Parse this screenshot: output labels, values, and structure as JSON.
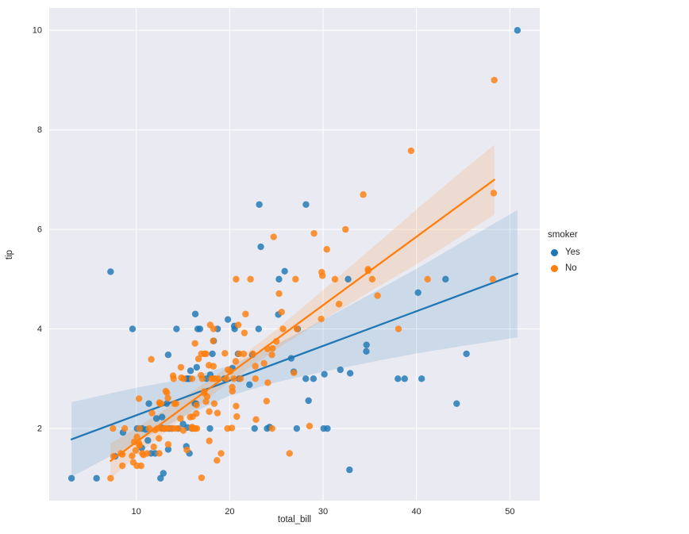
{
  "figure": {
    "background": "#ffffff",
    "plot_bg": "#eaeaf2",
    "grid_color": "#ffffff",
    "tick_color": "#262626"
  },
  "chart_data": {
    "type": "scatter",
    "title": "",
    "xlabel": "total_bill",
    "ylabel": "tip",
    "xlim": [
      0.68,
      53.2
    ],
    "ylim": [
      0.55,
      10.45
    ],
    "xticks": [
      10,
      20,
      30,
      40,
      50
    ],
    "yticks": [
      2,
      4,
      6,
      8,
      10
    ],
    "grid": true,
    "legend": {
      "title": "smoker",
      "position": "right-outside"
    },
    "series": [
      {
        "name": "Yes",
        "color": "#1f77b4",
        "regression": {
          "x_start": 3.07,
          "x_end": 50.81,
          "slope": 0.0697,
          "intercept": 1.568
        },
        "ci_band": [
          [
            3.07,
            1.03,
            2.53
          ],
          [
            10,
            1.72,
            2.82
          ],
          [
            15,
            2.23,
            2.99
          ],
          [
            20,
            2.66,
            3.26
          ],
          [
            25,
            2.93,
            3.69
          ],
          [
            30,
            3.14,
            4.18
          ],
          [
            35,
            3.33,
            4.69
          ],
          [
            40,
            3.51,
            5.21
          ],
          [
            45,
            3.66,
            5.76
          ],
          [
            50.81,
            3.83,
            6.39
          ]
        ],
        "points": [
          [
            38.01,
            3.0
          ],
          [
            11.24,
            1.76
          ],
          [
            20.29,
            3.21
          ],
          [
            13.81,
            2.0
          ],
          [
            11.02,
            1.98
          ],
          [
            18.29,
            3.76
          ],
          [
            3.07,
            1.0
          ],
          [
            15.01,
            2.09
          ],
          [
            26.86,
            3.14
          ],
          [
            25.28,
            5.0
          ],
          [
            17.92,
            3.08
          ],
          [
            19.44,
            3.0
          ],
          [
            32.68,
            5.0
          ],
          [
            28.97,
            3.0
          ],
          [
            5.75,
            1.0
          ],
          [
            16.32,
            4.3
          ],
          [
            40.17,
            4.73
          ],
          [
            27.28,
            4.0
          ],
          [
            12.03,
            1.5
          ],
          [
            21.01,
            3.0
          ],
          [
            11.35,
            2.5
          ],
          [
            15.38,
            3.0
          ],
          [
            44.3,
            2.5
          ],
          [
            22.42,
            3.48
          ],
          [
            15.36,
            1.64
          ],
          [
            20.49,
            4.06
          ],
          [
            25.21,
            4.29
          ],
          [
            14.31,
            4.0
          ],
          [
            17.51,
            3.0
          ],
          [
            10.59,
            1.61
          ],
          [
            10.63,
            2.0
          ],
          [
            50.81,
            10.0
          ],
          [
            15.81,
            3.16
          ],
          [
            7.25,
            5.15
          ],
          [
            31.85,
            3.18
          ],
          [
            16.82,
            4.0
          ],
          [
            32.9,
            3.11
          ],
          [
            17.89,
            2.0
          ],
          [
            14.48,
            2.0
          ],
          [
            9.6,
            4.0
          ],
          [
            34.63,
            3.55
          ],
          [
            34.65,
            3.68
          ],
          [
            23.33,
            5.65
          ],
          [
            45.35,
            3.5
          ],
          [
            23.17,
            6.5
          ],
          [
            40.55,
            3.0
          ],
          [
            20.9,
            3.5
          ],
          [
            30.46,
            2.0
          ],
          [
            18.15,
            3.5
          ],
          [
            23.1,
            4.0
          ],
          [
            15.69,
            1.5
          ],
          [
            19.81,
            4.19
          ],
          [
            28.44,
            2.56
          ],
          [
            15.48,
            2.02
          ],
          [
            16.58,
            4.0
          ],
          [
            10.34,
            2.0
          ],
          [
            43.11,
            5.0
          ],
          [
            13.0,
            2.0
          ],
          [
            13.51,
            2.0
          ],
          [
            18.71,
            4.0
          ],
          [
            12.74,
            2.01
          ],
          [
            13.0,
            2.0
          ],
          [
            16.4,
            2.5
          ],
          [
            20.53,
            4.0
          ],
          [
            16.47,
            3.23
          ],
          [
            26.59,
            3.41
          ],
          [
            38.73,
            3.0
          ],
          [
            24.27,
            2.03
          ],
          [
            12.76,
            2.23
          ],
          [
            30.06,
            2.0
          ],
          [
            25.89,
            5.16
          ],
          [
            13.27,
            2.5
          ],
          [
            28.17,
            6.5
          ],
          [
            12.9,
            1.1
          ],
          [
            28.15,
            3.0
          ],
          [
            11.59,
            1.5
          ],
          [
            7.74,
            1.44
          ],
          [
            30.14,
            3.09
          ],
          [
            12.16,
            2.2
          ],
          [
            13.42,
            3.48
          ],
          [
            8.58,
            1.92
          ],
          [
            13.42,
            1.58
          ],
          [
            16.27,
            2.5
          ],
          [
            10.09,
            2.0
          ],
          [
            22.12,
            2.88
          ],
          [
            24.01,
            2.0
          ],
          [
            15.69,
            3.0
          ],
          [
            15.53,
            3.0
          ],
          [
            12.6,
            1.0
          ],
          [
            32.83,
            1.17
          ],
          [
            27.18,
            2.0
          ],
          [
            22.67,
            2.0
          ],
          [
            16.0,
            2.0
          ]
        ]
      },
      {
        "name": "No",
        "color": "#ff7f0e",
        "regression": {
          "x_start": 7.25,
          "x_end": 48.33,
          "slope": 0.1375,
          "intercept": 0.353
        },
        "ci_band": [
          [
            7.25,
            0.99,
            1.7
          ],
          [
            10,
            1.45,
            2.01
          ],
          [
            15,
            2.22,
            2.62
          ],
          [
            20,
            2.94,
            3.26
          ],
          [
            25,
            3.59,
            3.99
          ],
          [
            30,
            4.18,
            4.78
          ],
          [
            35,
            4.75,
            5.59
          ],
          [
            40,
            5.3,
            6.4
          ],
          [
            44,
            5.77,
            7.03
          ],
          [
            48.33,
            6.3,
            7.7
          ]
        ],
        "points": [
          [
            16.99,
            1.01
          ],
          [
            10.34,
            1.66
          ],
          [
            21.01,
            3.5
          ],
          [
            23.68,
            3.31
          ],
          [
            24.59,
            3.61
          ],
          [
            25.29,
            4.71
          ],
          [
            8.77,
            2.0
          ],
          [
            26.88,
            3.12
          ],
          [
            15.04,
            1.96
          ],
          [
            14.78,
            3.23
          ],
          [
            10.27,
            1.71
          ],
          [
            35.26,
            5.0
          ],
          [
            15.42,
            1.57
          ],
          [
            18.43,
            3.0
          ],
          [
            14.83,
            3.02
          ],
          [
            21.58,
            3.92
          ],
          [
            10.33,
            1.67
          ],
          [
            16.29,
            3.71
          ],
          [
            16.97,
            3.5
          ],
          [
            20.65,
            3.35
          ],
          [
            17.92,
            4.08
          ],
          [
            20.29,
            2.75
          ],
          [
            15.77,
            2.23
          ],
          [
            39.42,
            7.58
          ],
          [
            19.82,
            3.18
          ],
          [
            17.81,
            2.34
          ],
          [
            13.37,
            2.0
          ],
          [
            12.69,
            2.0
          ],
          [
            21.7,
            4.3
          ],
          [
            19.65,
            3.0
          ],
          [
            9.55,
            1.45
          ],
          [
            18.35,
            2.5
          ],
          [
            15.06,
            3.0
          ],
          [
            20.69,
            2.45
          ],
          [
            17.78,
            3.27
          ],
          [
            24.06,
            3.6
          ],
          [
            16.31,
            2.0
          ],
          [
            16.93,
            3.07
          ],
          [
            18.69,
            2.31
          ],
          [
            31.27,
            5.0
          ],
          [
            16.04,
            2.24
          ],
          [
            17.46,
            2.54
          ],
          [
            13.94,
            3.06
          ],
          [
            9.68,
            1.32
          ],
          [
            30.4,
            5.6
          ],
          [
            18.29,
            3.0
          ],
          [
            22.23,
            5.0
          ],
          [
            32.4,
            6.0
          ],
          [
            28.55,
            2.05
          ],
          [
            18.04,
            3.0
          ],
          [
            12.54,
            2.5
          ],
          [
            10.29,
            2.6
          ],
          [
            34.81,
            5.2
          ],
          [
            9.94,
            1.56
          ],
          [
            25.56,
            4.34
          ],
          [
            19.49,
            3.51
          ],
          [
            26.41,
            1.5
          ],
          [
            48.27,
            6.73
          ],
          [
            17.59,
            2.64
          ],
          [
            20.08,
            3.15
          ],
          [
            16.45,
            2.47
          ],
          [
            20.23,
            2.01
          ],
          [
            12.02,
            1.97
          ],
          [
            17.07,
            3.0
          ],
          [
            14.73,
            2.2
          ],
          [
            10.51,
            1.25
          ],
          [
            27.2,
            4.0
          ],
          [
            22.76,
            3.0
          ],
          [
            17.29,
            2.71
          ],
          [
            16.66,
            3.4
          ],
          [
            10.07,
            1.83
          ],
          [
            15.98,
            2.03
          ],
          [
            34.83,
            5.17
          ],
          [
            13.03,
            2.0
          ],
          [
            18.28,
            4.0
          ],
          [
            24.71,
            5.85
          ],
          [
            21.16,
            3.0
          ],
          [
            22.49,
            3.5
          ],
          [
            22.75,
            3.25
          ],
          [
            12.46,
            1.5
          ],
          [
            20.92,
            4.08
          ],
          [
            18.24,
            3.76
          ],
          [
            14.0,
            3.0
          ],
          [
            7.25,
            1.0
          ],
          [
            38.07,
            4.0
          ],
          [
            23.95,
            2.55
          ],
          [
            25.71,
            4.0
          ],
          [
            17.31,
            3.5
          ],
          [
            29.93,
            5.07
          ],
          [
            10.65,
            1.5
          ],
          [
            12.43,
            1.8
          ],
          [
            24.08,
            2.92
          ],
          [
            11.69,
            2.31
          ],
          [
            13.42,
            1.68
          ],
          [
            14.26,
            2.5
          ],
          [
            15.95,
            2.0
          ],
          [
            12.48,
            2.52
          ],
          [
            29.8,
            4.2
          ],
          [
            8.52,
            1.48
          ],
          [
            14.52,
            2.0
          ],
          [
            11.38,
            2.0
          ],
          [
            22.82,
            2.18
          ],
          [
            19.08,
            1.5
          ],
          [
            20.27,
            2.83
          ],
          [
            11.17,
            1.5
          ],
          [
            12.26,
            2.0
          ],
          [
            18.26,
            3.25
          ],
          [
            8.51,
            1.25
          ],
          [
            10.33,
            2.0
          ],
          [
            14.15,
            2.0
          ],
          [
            13.16,
            2.75
          ],
          [
            17.47,
            3.5
          ],
          [
            34.3,
            6.7
          ],
          [
            41.19,
            5.0
          ],
          [
            27.05,
            5.0
          ],
          [
            16.43,
            2.3
          ],
          [
            8.35,
            1.5
          ],
          [
            18.64,
            1.36
          ],
          [
            11.87,
            1.63
          ],
          [
            9.78,
            1.73
          ],
          [
            7.51,
            2.0
          ],
          [
            14.07,
            2.5
          ],
          [
            13.13,
            2.0
          ],
          [
            17.26,
            2.74
          ],
          [
            24.55,
            2.0
          ],
          [
            19.77,
            2.0
          ],
          [
            29.85,
            5.14
          ],
          [
            48.17,
            5.0
          ],
          [
            25.0,
            3.75
          ],
          [
            13.39,
            2.61
          ],
          [
            16.49,
            2.0
          ],
          [
            21.5,
            3.5
          ],
          [
            12.66,
            2.5
          ],
          [
            16.21,
            2.0
          ],
          [
            13.81,
            2.0
          ],
          [
            24.52,
            3.48
          ],
          [
            20.76,
            2.24
          ],
          [
            31.71,
            4.5
          ],
          [
            20.69,
            5.0
          ],
          [
            7.56,
            1.44
          ],
          [
            15.98,
            3.0
          ],
          [
            20.45,
            3.0
          ],
          [
            13.28,
            2.72
          ],
          [
            11.61,
            3.39
          ],
          [
            10.77,
            1.47
          ],
          [
            10.07,
            1.25
          ],
          [
            35.83,
            4.67
          ],
          [
            29.03,
            5.92
          ],
          [
            17.82,
            1.75
          ],
          [
            18.78,
            3.0
          ],
          [
            48.33,
            9.0
          ]
        ]
      }
    ]
  }
}
